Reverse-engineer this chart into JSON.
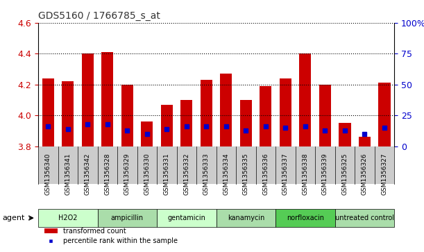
{
  "title": "GDS5160 / 1766785_s_at",
  "categories": [
    "GSM1356340",
    "GSM1356341",
    "GSM1356342",
    "GSM1356328",
    "GSM1356329",
    "GSM1356330",
    "GSM1356331",
    "GSM1356332",
    "GSM1356333",
    "GSM1356334",
    "GSM1356335",
    "GSM1356336",
    "GSM1356337",
    "GSM1356338",
    "GSM1356339",
    "GSM1356325",
    "GSM1356326",
    "GSM1356327"
  ],
  "bar_values": [
    4.24,
    4.22,
    4.4,
    4.41,
    4.2,
    3.96,
    4.07,
    4.1,
    4.23,
    4.27,
    4.1,
    4.19,
    4.24,
    4.4,
    4.2,
    3.95,
    3.86,
    4.21
  ],
  "blue_dot_values": [
    3.93,
    3.91,
    3.94,
    3.94,
    3.9,
    3.88,
    3.91,
    3.93,
    3.93,
    3.93,
    3.9,
    3.93,
    3.92,
    3.93,
    3.9,
    3.9,
    3.88,
    3.92
  ],
  "ymin": 3.8,
  "ymax": 4.6,
  "yticks": [
    3.8,
    4.0,
    4.2,
    4.4,
    4.6
  ],
  "y2ticks": [
    0,
    25,
    50,
    75,
    100
  ],
  "y2tick_labels": [
    "0",
    "25",
    "50",
    "75",
    "100%"
  ],
  "bar_color": "#cc0000",
  "dot_color": "#0000cc",
  "bar_width": 0.6,
  "groups": [
    {
      "label": "H2O2",
      "start": 0,
      "end": 3,
      "color": "#ccffcc"
    },
    {
      "label": "ampicillin",
      "start": 3,
      "end": 6,
      "color": "#aaddaa"
    },
    {
      "label": "gentamicin",
      "start": 6,
      "end": 9,
      "color": "#ccffcc"
    },
    {
      "label": "kanamycin",
      "start": 9,
      "end": 12,
      "color": "#aaddaa"
    },
    {
      "label": "norfloxacin",
      "start": 12,
      "end": 15,
      "color": "#55cc55"
    },
    {
      "label": "untreated control",
      "start": 15,
      "end": 18,
      "color": "#aaddaa"
    }
  ],
  "agent_label": "agent",
  "legend_items": [
    {
      "label": "transformed count",
      "color": "#cc0000"
    },
    {
      "label": "percentile rank within the sample",
      "color": "#0000cc"
    }
  ],
  "left_tick_color": "#cc0000",
  "right_tick_color": "#0000cc",
  "title_color": "#333333",
  "bg_color": "#ffffff",
  "bar_bottom": 3.8
}
